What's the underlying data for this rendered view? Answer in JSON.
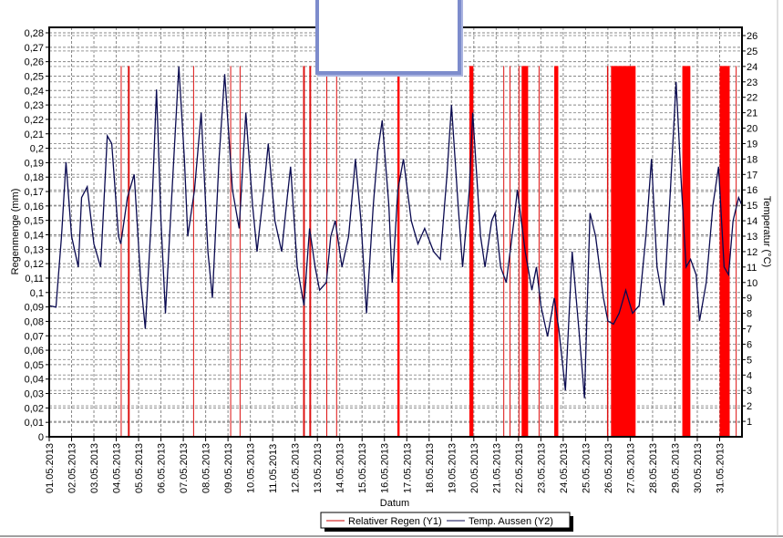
{
  "chart_data": {
    "type": "bar+line",
    "xlabel": "Datum",
    "ylabel": "Regenmenge (mm)",
    "y2label": "Temperatur (°C)",
    "ylim": [
      0,
      0.28
    ],
    "y2lim": [
      0,
      26
    ],
    "grid": true,
    "legend_placement": "bottom-center",
    "x_ticks": [
      "01.05.2013",
      "02.05.2013",
      "03.05.2013",
      "04.05.2013",
      "05.05.2013",
      "06.05.2013",
      "07.05.2013",
      "08.05.2013",
      "09.05.2013",
      "10.05.2013",
      "11.05.2013",
      "12.05.2013",
      "13.05.2013",
      "14.05.2013",
      "15.05.2013",
      "16.05.2013",
      "17.05.2013",
      "18.05.2013",
      "19.05.2013",
      "20.05.2013",
      "21.05.2013",
      "22.05.2013",
      "23.05.2013",
      "24.05.2013",
      "25.05.2013",
      "26.05.2013",
      "27.05.2013",
      "28.05.2013",
      "29.05.2013",
      "30.05.2013",
      "31.05.2013"
    ],
    "y_ticks": [
      "0",
      "0,01",
      "0,02",
      "0,03",
      "0,04",
      "0,05",
      "0,06",
      "0,07",
      "0,08",
      "0,09",
      "0,1",
      "0,11",
      "0,12",
      "0,13",
      "0,14",
      "0,15",
      "0,16",
      "0,17",
      "0,18",
      "0,19",
      "0,2",
      "0,21",
      "0,22",
      "0,23",
      "0,24",
      "0,25",
      "0,26",
      "0,27",
      "0,28"
    ],
    "y2_ticks": [
      "1",
      "2",
      "3",
      "4",
      "5",
      "6",
      "7",
      "8",
      "9",
      "10",
      "11",
      "12",
      "13",
      "14",
      "15",
      "16",
      "17",
      "18",
      "19",
      "20",
      "21",
      "22",
      "23",
      "24",
      "25",
      "26"
    ],
    "series": [
      {
        "name": "Relativer Regen (Y1)",
        "axis": "y",
        "color": "#ee0000",
        "value": 0.257,
        "intervals_days": [
          [
            3.2,
            3.24
          ],
          [
            3.52,
            3.6
          ],
          [
            6.44,
            6.48
          ],
          [
            8.1,
            8.14
          ],
          [
            8.52,
            8.56
          ],
          [
            11.36,
            11.44
          ],
          [
            11.64,
            11.72
          ],
          [
            12.4,
            12.44
          ],
          [
            12.84,
            12.88
          ],
          [
            15.58,
            15.68
          ],
          [
            18.8,
            18.98
          ],
          [
            20.32,
            20.36
          ],
          [
            20.6,
            20.64
          ],
          [
            21.0,
            21.04
          ],
          [
            21.14,
            21.43
          ],
          [
            21.9,
            21.94
          ],
          [
            22.6,
            22.78
          ],
          [
            24.96,
            25.02
          ],
          [
            25.14,
            26.24
          ],
          [
            28.33,
            28.69
          ],
          [
            30.0,
            30.45
          ],
          [
            30.72,
            30.76
          ]
        ]
      },
      {
        "name": "Temp. Aussen (Y2)",
        "axis": "y2",
        "color": "#0a0a50",
        "points_day_temp": [
          [
            0,
            8.5
          ],
          [
            0.3,
            8.4
          ],
          [
            0.55,
            13
          ],
          [
            0.75,
            17.8
          ],
          [
            1.0,
            13
          ],
          [
            1.3,
            11
          ],
          [
            1.45,
            15.5
          ],
          [
            1.7,
            16.2
          ],
          [
            2.0,
            12.5
          ],
          [
            2.3,
            11
          ],
          [
            2.6,
            19.5
          ],
          [
            2.8,
            19
          ],
          [
            3.1,
            13
          ],
          [
            3.2,
            12.5
          ],
          [
            3.5,
            15.5
          ],
          [
            3.8,
            17
          ],
          [
            4.1,
            10
          ],
          [
            4.3,
            7
          ],
          [
            4.6,
            15
          ],
          [
            4.8,
            22.5
          ],
          [
            5.0,
            14
          ],
          [
            5.2,
            8
          ],
          [
            5.5,
            16
          ],
          [
            5.8,
            24
          ],
          [
            6.05,
            18
          ],
          [
            6.2,
            13
          ],
          [
            6.5,
            16
          ],
          [
            6.8,
            21
          ],
          [
            7.1,
            12
          ],
          [
            7.3,
            9
          ],
          [
            7.6,
            18
          ],
          [
            7.85,
            23.5
          ],
          [
            8.2,
            16
          ],
          [
            8.5,
            13.5
          ],
          [
            8.8,
            21
          ],
          [
            9.1,
            15
          ],
          [
            9.3,
            12
          ],
          [
            9.6,
            16
          ],
          [
            9.8,
            19
          ],
          [
            10.1,
            14
          ],
          [
            10.4,
            12
          ],
          [
            10.65,
            15.5
          ],
          [
            10.8,
            17.5
          ],
          [
            11.1,
            11
          ],
          [
            11.4,
            8.5
          ],
          [
            11.65,
            13.5
          ],
          [
            11.9,
            11
          ],
          [
            12.1,
            9.5
          ],
          [
            12.4,
            10
          ],
          [
            12.6,
            13
          ],
          [
            12.8,
            14
          ],
          [
            13.1,
            11
          ],
          [
            13.4,
            13
          ],
          [
            13.7,
            18
          ],
          [
            13.95,
            14
          ],
          [
            14.2,
            8
          ],
          [
            14.5,
            15
          ],
          [
            14.7,
            18.5
          ],
          [
            14.9,
            20.5
          ],
          [
            15.2,
            15
          ],
          [
            15.35,
            10
          ],
          [
            15.6,
            16
          ],
          [
            15.85,
            18
          ],
          [
            16.2,
            14
          ],
          [
            16.5,
            12.5
          ],
          [
            16.8,
            13.5
          ],
          [
            17.2,
            12
          ],
          [
            17.5,
            11.5
          ],
          [
            17.8,
            17
          ],
          [
            18.0,
            21.5
          ],
          [
            18.3,
            15
          ],
          [
            18.5,
            11
          ],
          [
            18.8,
            16
          ],
          [
            18.95,
            21
          ],
          [
            19.3,
            13
          ],
          [
            19.5,
            11
          ],
          [
            19.8,
            14
          ],
          [
            19.95,
            14.5
          ],
          [
            20.2,
            11
          ],
          [
            20.45,
            10
          ],
          [
            20.8,
            14
          ],
          [
            20.95,
            16
          ],
          [
            21.3,
            12
          ],
          [
            21.6,
            9.5
          ],
          [
            21.8,
            11
          ],
          [
            22.0,
            8.5
          ],
          [
            22.3,
            6.5
          ],
          [
            22.6,
            9
          ],
          [
            22.8,
            7
          ],
          [
            23.1,
            3
          ],
          [
            23.4,
            12
          ],
          [
            23.7,
            7
          ],
          [
            23.95,
            2.5
          ],
          [
            24.2,
            14.5
          ],
          [
            24.45,
            13
          ],
          [
            24.8,
            9
          ],
          [
            25.0,
            7.5
          ],
          [
            25.25,
            7.3
          ],
          [
            25.5,
            8
          ],
          [
            25.8,
            9.5
          ],
          [
            26.1,
            8
          ],
          [
            26.4,
            8.5
          ],
          [
            26.7,
            13
          ],
          [
            26.95,
            18
          ],
          [
            27.2,
            11
          ],
          [
            27.5,
            8.5
          ],
          [
            27.8,
            16
          ],
          [
            28.05,
            23
          ],
          [
            28.3,
            16
          ],
          [
            28.5,
            11
          ],
          [
            28.7,
            11.5
          ],
          [
            28.95,
            10.5
          ],
          [
            29.1,
            7.5
          ],
          [
            29.4,
            10
          ],
          [
            29.7,
            15
          ],
          [
            29.95,
            17.5
          ],
          [
            30.2,
            11
          ],
          [
            30.4,
            10.5
          ],
          [
            30.6,
            14
          ],
          [
            30.85,
            15.5
          ],
          [
            31.0,
            15
          ]
        ]
      }
    ]
  },
  "legend": {
    "items": [
      {
        "label": "Relativer Regen (Y1)",
        "color": "#cc0000"
      },
      {
        "label": "Temp. Aussen (Y2)",
        "color": "#0a0a50"
      }
    ]
  }
}
